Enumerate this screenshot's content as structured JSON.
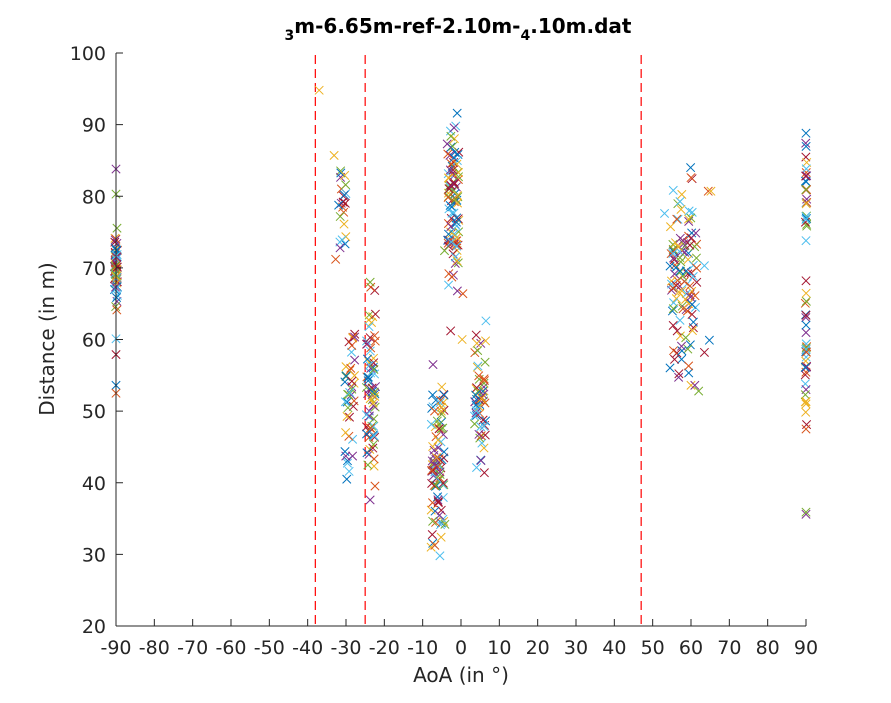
{
  "chart_data": {
    "type": "scatter",
    "title": {
      "sub1": "3",
      "part1": "m-6.65m-ref-2.10m-",
      "sub2": "4",
      "part2": ".10m.dat"
    },
    "xlabel": "AoA (in °)",
    "ylabel": "Distance (in m)",
    "xlim": [
      -90,
      90
    ],
    "ylim": [
      20,
      100
    ],
    "xticks": [
      -90,
      -80,
      -70,
      -60,
      -50,
      -40,
      -30,
      -20,
      -10,
      0,
      10,
      20,
      30,
      40,
      50,
      60,
      70,
      80,
      90
    ],
    "yticks": [
      20,
      30,
      40,
      50,
      60,
      70,
      80,
      90,
      100
    ],
    "grid": false,
    "marker": "x",
    "colors": [
      "#0072BD",
      "#D95319",
      "#EDB120",
      "#7E2F8E",
      "#77AC30",
      "#4DBEEE",
      "#A2142F"
    ],
    "reference_lines": {
      "orientation": "vertical",
      "style": "dashed",
      "color": "#FF0000",
      "x": [
        -38,
        -25,
        47
      ]
    },
    "clusters": [
      {
        "x_center": -90,
        "x_spread": 0.4,
        "y_min": 63,
        "y_max": 77,
        "count": 70
      },
      {
        "x_center": -31,
        "x_spread": 1.0,
        "y_min": 71,
        "y_max": 86,
        "count": 22
      },
      {
        "x_center": -29,
        "x_spread": 1.3,
        "y_min": 40,
        "y_max": 66,
        "count": 40
      },
      {
        "x_center": -23.5,
        "x_spread": 1.2,
        "y_min": 37,
        "y_max": 68,
        "count": 70
      },
      {
        "x_center": -6,
        "x_spread": 1.8,
        "y_min": 30,
        "y_max": 56,
        "count": 90
      },
      {
        "x_center": -2,
        "x_spread": 1.5,
        "y_min": 66,
        "y_max": 92,
        "count": 100
      },
      {
        "x_center": 5,
        "x_spread": 1.5,
        "y_min": 41,
        "y_max": 63,
        "count": 55
      },
      {
        "x_center": 58,
        "x_spread": 3.5,
        "y_min": 53,
        "y_max": 84,
        "count": 110
      },
      {
        "x_center": 90,
        "x_spread": 0.2,
        "y_min": 73,
        "y_max": 89,
        "count": 25
      },
      {
        "x_center": 90,
        "x_spread": 0.2,
        "y_min": 47,
        "y_max": 68,
        "count": 30
      }
    ],
    "points": [
      [
        -90,
        83.8
      ],
      [
        -90,
        80.3
      ],
      [
        -90,
        60.1
      ],
      [
        -90,
        57.9
      ],
      [
        -90,
        53.6
      ],
      [
        -90,
        52.5
      ],
      [
        -37,
        94.8
      ],
      [
        -7.3,
        56.5
      ],
      [
        -4.2,
        34.2
      ],
      [
        -5.5,
        29.8
      ],
      [
        -2.7,
        61.2
      ],
      [
        -1.0,
        91.6
      ],
      [
        0.5,
        66.4
      ],
      [
        0.3,
        60.0
      ],
      [
        -3.6,
        87.3
      ],
      [
        -4.3,
        72.4
      ],
      [
        6.5,
        62.6
      ],
      [
        6.1,
        41.4
      ],
      [
        -29.8,
        40.5
      ],
      [
        -32.7,
        71.2
      ],
      [
        -33.1,
        85.7
      ],
      [
        -23.7,
        37.6
      ],
      [
        -23.7,
        68.0
      ],
      [
        53.1,
        77.6
      ],
      [
        56.4,
        61.2
      ],
      [
        59.9,
        84.0
      ],
      [
        60.0,
        82.6
      ],
      [
        60.0,
        53.6
      ],
      [
        61.0,
        53.6
      ],
      [
        62.0,
        52.8
      ],
      [
        63.5,
        70.3
      ],
      [
        63.5,
        58.2
      ],
      [
        64.8,
        59.9
      ],
      [
        64.5,
        80.7
      ],
      [
        65.2,
        80.7
      ],
      [
        90,
        35.6
      ],
      [
        90,
        35.9
      ],
      [
        90,
        73.8
      ],
      [
        90,
        68.2
      ],
      [
        90,
        88.8
      ],
      [
        90,
        47.5
      ],
      [
        90,
        51.0
      ]
    ]
  }
}
